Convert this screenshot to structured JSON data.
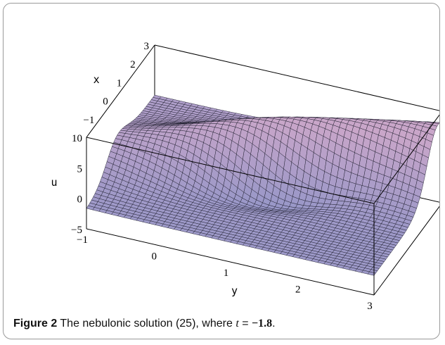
{
  "chart_data": {
    "type": "surface3d",
    "x_axis": {
      "label": "x",
      "ticks": [
        "3",
        "2",
        "1",
        "0",
        "−1"
      ]
    },
    "y_axis": {
      "label": "y",
      "ticks": [
        "−1",
        "0",
        "1",
        "2",
        "3"
      ]
    },
    "z_axis": {
      "label": "u",
      "ticks": [
        "10",
        "5",
        "0",
        "−5"
      ]
    },
    "xlim": [
      -2,
      3
    ],
    "ylim": [
      -1,
      3
    ],
    "zlim": [
      -5,
      10
    ],
    "surface_colors": [
      "#8e94c8",
      "#c9a6c9"
    ]
  },
  "caption": {
    "label": "Figure 2",
    "text": "The nebulonic solution (25), where",
    "var": "t",
    "eq": "=",
    "value": "−1.8",
    "end": "."
  }
}
